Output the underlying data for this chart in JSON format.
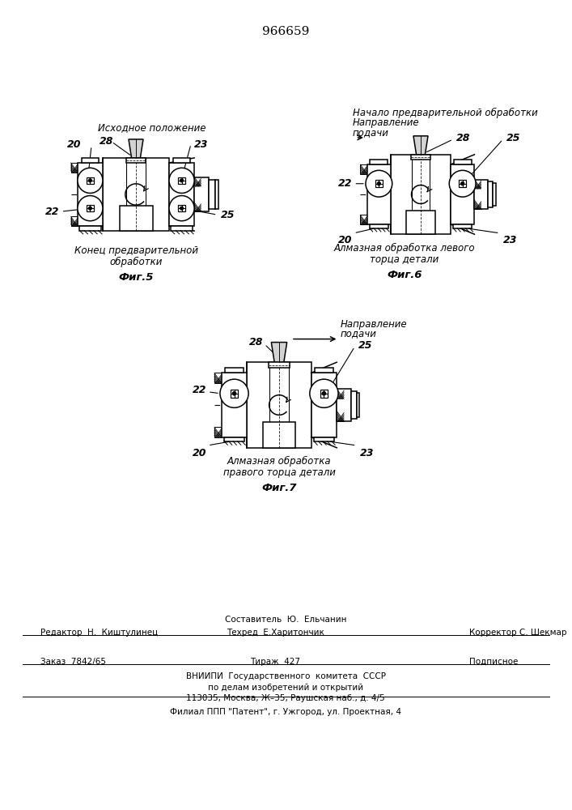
{
  "title": "966659",
  "background_color": "#ffffff",
  "fig5_label": "Фиг.5",
  "fig6_label": "Фиг.6",
  "fig7_label": "Фиг.7",
  "fig5_title": "Исходное положение",
  "fig5_caption1": "Конец предварительной",
  "fig5_caption2": "обработки",
  "fig6_title1": "Начало предварительной обработки",
  "fig6_title2": "Направление",
  "fig6_title3": "подачи",
  "fig6_caption1": "Алмазная обработка левого",
  "fig6_caption2": "торца детали",
  "fig7_title1": "Направление",
  "fig7_title2": "подачи",
  "fig7_caption1": "Алмазная обработка",
  "fig7_caption2": "правого торца детали",
  "lc": "#000000",
  "tc": "#000000",
  "footer_comp": "Составитель  Ю.  Ельчанин",
  "footer_ed": "Редактор  Н.  Киштулинец",
  "footer_tech": "Техред  Е.Харитончик",
  "footer_corr": "Корректор С. Шекмар",
  "footer_order": "Заказ  7842/65",
  "footer_circ": "Тираж  427",
  "footer_sub": "Подписное",
  "footer_vn": "ВНИИПИ  Государственного  комитета  СССР",
  "footer_inv": "по делам изобретений и открытий",
  "footer_addr": "113035, Москва, Ж–35, Раушская наб., д. 4/5",
  "footer_fil": "Филиал ППП \"Патент\", г. Ужгород, ул. Проектная, 4"
}
